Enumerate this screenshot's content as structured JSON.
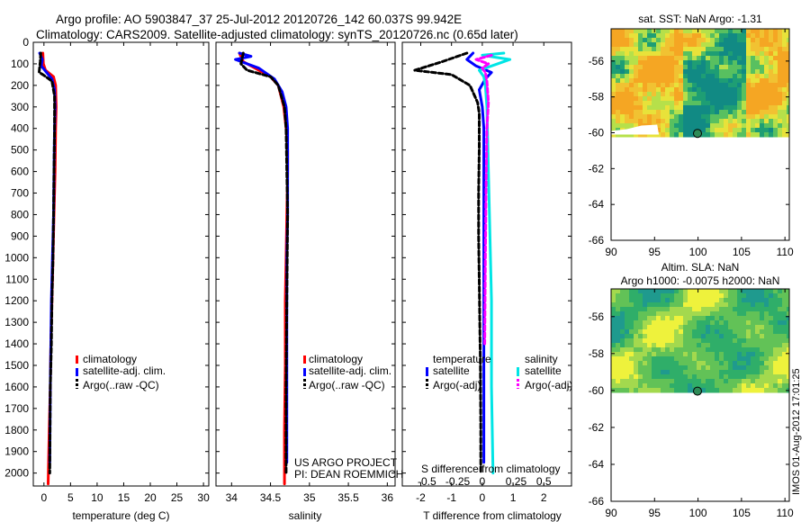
{
  "title": {
    "line1": "Argo profile: AO 5903847_37 25-Jul-2012 20120726_142 60.037S 99.942E",
    "line2": "Climatology: CARS2009. Satellite-adjusted climatology: synTS_20120726.nc (0.65d later)"
  },
  "watermark": "IMOS 01-Aug-2012 17:01:25",
  "credits": {
    "line1": "US ARGO PROJECT",
    "line2": "PI: DEAN ROEMMICH"
  },
  "colors": {
    "climatology": "#ff0000",
    "satellite": "#0000ff",
    "argo": "#000000",
    "sat_salinity": "#00e5e5",
    "argo_salinity": "#ff00ff"
  },
  "chart_data": [
    {
      "type": "line",
      "id": "temperature",
      "xlabel": "temperature (deg C)",
      "xlim": [
        -2,
        31
      ],
      "ylim": [
        0,
        2060
      ],
      "y_reversed": true,
      "xticks": [
        0,
        5,
        10,
        15,
        20,
        25,
        30
      ],
      "yticks": [
        0,
        100,
        200,
        300,
        400,
        500,
        600,
        700,
        800,
        900,
        1000,
        1100,
        1200,
        1300,
        1400,
        1500,
        1600,
        1700,
        1800,
        1900,
        2000
      ],
      "legend": [
        "climatology",
        "satellite-adj. clim.",
        "Argo(..raw -QC)"
      ],
      "series": [
        {
          "name": "climatology",
          "color": "#ff0000",
          "dash": "none",
          "x": [
            -0.2,
            -0.1,
            0.3,
            1.8,
            2.2,
            2.3,
            2.2,
            2.1,
            1.9,
            1.7,
            1.5,
            1.3,
            1.2,
            1.0,
            0.8
          ],
          "y": [
            50,
            100,
            130,
            160,
            200,
            300,
            400,
            600,
            800,
            1000,
            1200,
            1400,
            1600,
            1800,
            2050
          ]
        },
        {
          "name": "satellite-adj. clim.",
          "color": "#0000ff",
          "dash": "none",
          "x": [
            -0.8,
            -0.3,
            -0.5,
            0.5,
            1.5,
            2.0,
            2.1,
            2.0,
            1.9,
            1.8,
            1.6,
            1.4,
            1.3,
            1.2,
            1.1
          ],
          "y": [
            50,
            80,
            110,
            140,
            170,
            220,
            300,
            400,
            600,
            800,
            1000,
            1200,
            1400,
            1600,
            1950
          ]
        },
        {
          "name": "Argo(..raw -QC)",
          "color": "#000000",
          "dash": "5,3",
          "x": [
            -0.6,
            -0.7,
            -0.9,
            -0.2,
            1.5,
            2.0,
            2.0,
            1.9,
            1.8,
            1.7,
            1.5,
            1.4,
            1.2,
            1.1
          ],
          "y": [
            50,
            90,
            140,
            150,
            180,
            250,
            400,
            600,
            800,
            1000,
            1200,
            1400,
            1600,
            2000
          ]
        }
      ]
    },
    {
      "type": "line",
      "id": "salinity",
      "xlabel": "salinity",
      "xlim": [
        33.8,
        36.1
      ],
      "ylim": [
        0,
        2060
      ],
      "y_reversed": true,
      "xticks": [
        34,
        34.5,
        35,
        35.5,
        36
      ],
      "legend": [
        "climatology",
        "satellite-adj. clim.",
        "Argo(..raw -QC)"
      ],
      "series": [
        {
          "name": "climatology",
          "color": "#ff0000",
          "dash": "none",
          "x": [
            34.1,
            34.15,
            34.3,
            34.5,
            34.6,
            34.67,
            34.7,
            34.72,
            34.72,
            34.71,
            34.7,
            34.69,
            34.69,
            34.68,
            34.68
          ],
          "y": [
            50,
            90,
            120,
            160,
            200,
            300,
            400,
            500,
            600,
            800,
            1000,
            1200,
            1500,
            1800,
            2050
          ]
        },
        {
          "name": "satellite-adj. clim.",
          "color": "#0000ff",
          "dash": "none",
          "x": [
            34.1,
            34.25,
            34.05,
            34.2,
            34.35,
            34.55,
            34.65,
            34.7,
            34.72,
            34.72,
            34.72,
            34.71,
            34.71,
            34.71,
            34.71
          ],
          "y": [
            50,
            65,
            80,
            100,
            120,
            170,
            230,
            300,
            400,
            600,
            800,
            1000,
            1400,
            1700,
            1950
          ]
        },
        {
          "name": "Argo(..raw -QC)",
          "color": "#000000",
          "dash": "5,3",
          "x": [
            34.15,
            34.12,
            34.2,
            34.3,
            34.5,
            34.6,
            34.68,
            34.7,
            34.71,
            34.72,
            34.71,
            34.7,
            34.7
          ],
          "y": [
            50,
            100,
            130,
            140,
            160,
            200,
            300,
            400,
            600,
            800,
            1200,
            1600,
            2000
          ]
        }
      ]
    },
    {
      "type": "line",
      "id": "difference",
      "xlabel": "T difference from climatology",
      "toplabel": "S difference from climatology",
      "xlim": [
        -2.6,
        2.9
      ],
      "ylim": [
        0,
        2060
      ],
      "y_reversed": true,
      "xticks": [
        -2,
        -1,
        0,
        1,
        2
      ],
      "sticks": [
        {
          "label": "-0.5",
          "x": -1.8
        },
        {
          "label": "-0.25",
          "x": -0.8
        },
        {
          "label": "0",
          "x": 0
        },
        {
          "label": "0.25",
          "x": 1.1
        },
        {
          "label": "0.5",
          "x": 2.0
        }
      ],
      "legend_temperature": {
        "header": "temperature",
        "items": [
          "satellite",
          "Argo(-adj)"
        ]
      },
      "legend_salinity": {
        "header": "salinity",
        "items": [
          "satellite",
          "Argo(-adj)"
        ]
      },
      "series": [
        {
          "name": "satellite",
          "group": "temperature",
          "color": "#0000ff",
          "dash": "none",
          "x": [
            -0.3,
            -0.5,
            -0.2,
            0.3,
            0.1,
            -0.1,
            0.0,
            0.05,
            0.05,
            0.05,
            0.05,
            0.05,
            0.05,
            0.05
          ],
          "y": [
            50,
            80,
            110,
            140,
            170,
            220,
            300,
            400,
            600,
            800,
            1000,
            1200,
            1600,
            1950
          ]
        },
        {
          "name": "Argo(-adj)",
          "group": "temperature",
          "color": "#000000",
          "dash": "5,3",
          "x": [
            -0.5,
            -1.3,
            -2.2,
            -1.0,
            -0.4,
            -0.15,
            -0.1,
            -0.1,
            -0.12,
            -0.12,
            -0.1,
            -0.08,
            -0.06,
            -0.05,
            -0.05
          ],
          "y": [
            50,
            90,
            130,
            150,
            200,
            280,
            330,
            500,
            700,
            900,
            1100,
            1300,
            1500,
            1800,
            2000
          ]
        },
        {
          "name": "satellite",
          "group": "salinity",
          "color": "#00e5e5",
          "dash": "none",
          "x": [
            0.7,
            0.0,
            0.9,
            0.3,
            -0.1,
            0.05,
            0.1,
            0.15,
            0.2,
            0.25,
            0.3,
            0.3,
            0.35
          ],
          "y": [
            50,
            60,
            80,
            110,
            130,
            160,
            200,
            300,
            600,
            900,
            1200,
            1600,
            2000
          ]
        },
        {
          "name": "Argo(-adj)",
          "group": "salinity",
          "color": "#ff00ff",
          "dash": "5,3",
          "x": [
            0.3,
            -0.2,
            0.2,
            0.0,
            0.1,
            0.15,
            0.2,
            0.15,
            0.12,
            0.1,
            0.08
          ],
          "y": [
            60,
            80,
            100,
            120,
            140,
            180,
            280,
            400,
            700,
            1000,
            1400
          ]
        }
      ]
    },
    {
      "type": "heatmap",
      "id": "sst-map",
      "title": "sat. SST: NaN Argo: -1.31",
      "xlim": [
        90,
        110.5
      ],
      "ylim": [
        -66,
        -54.2
      ],
      "xticks": [
        90,
        95,
        100,
        105,
        110
      ],
      "yticks": [
        -56,
        -58,
        -60,
        -62,
        -64,
        -66
      ],
      "data_extent_lat": [
        -54.2,
        -60.1
      ],
      "argo_position": {
        "lon": 99.942,
        "lat": -60.037
      }
    },
    {
      "type": "heatmap",
      "id": "sla-map",
      "title": "Altim. SLA: NaN",
      "subtitle": "Argo h1000: -0.0075 h2000: NaN",
      "xlim": [
        90,
        110.5
      ],
      "ylim": [
        -66,
        -54.5
      ],
      "xticks": [
        90,
        95,
        100,
        105,
        110
      ],
      "yticks": [
        -56,
        -58,
        -60,
        -62,
        -64,
        -66
      ],
      "data_extent_lat": [
        -54.5,
        -60.1
      ],
      "argo_position": {
        "lon": 99.942,
        "lat": -60.037
      }
    }
  ]
}
